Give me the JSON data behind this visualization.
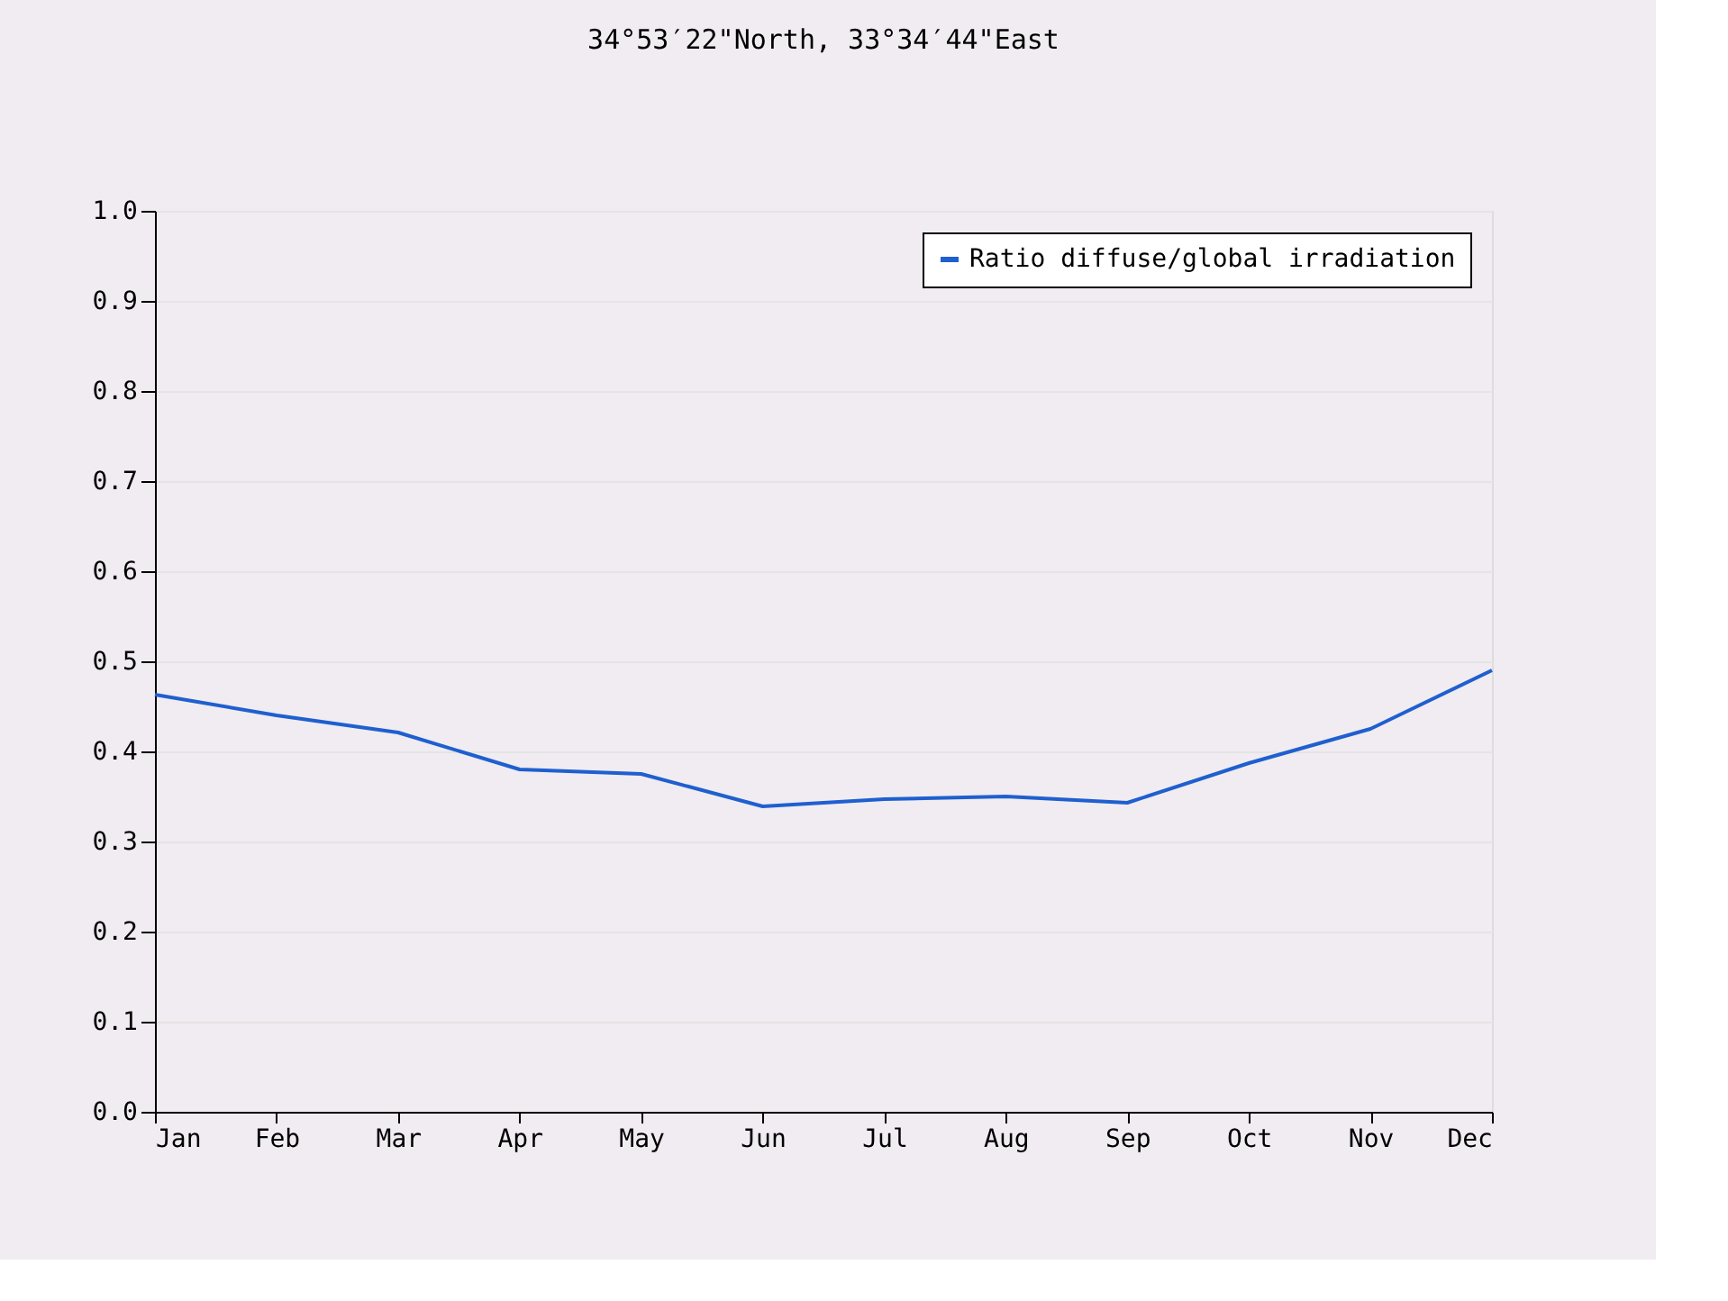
{
  "chart_data": {
    "type": "line",
    "title": "34°53′22\"North, 33°34′44\"East",
    "categories": [
      "Jan",
      "Feb",
      "Mar",
      "Apr",
      "May",
      "Jun",
      "Jul",
      "Aug",
      "Sep",
      "Oct",
      "Nov",
      "Dec"
    ],
    "series": [
      {
        "name": "Ratio diffuse/global irradiation",
        "color": "#1f5fcf",
        "values": [
          0.463,
          0.44,
          0.421,
          0.38,
          0.375,
          0.339,
          0.347,
          0.35,
          0.343,
          0.387,
          0.425,
          0.49
        ]
      }
    ],
    "ylim": [
      0.0,
      1.0
    ],
    "yticks": [
      {
        "value": 0,
        "label": "0.0"
      },
      {
        "value": 0.1,
        "label": "0.1"
      },
      {
        "value": 0.2,
        "label": "0.2"
      },
      {
        "value": 0.3,
        "label": "0.3"
      },
      {
        "value": 0.4,
        "label": "0.4"
      },
      {
        "value": 0.5,
        "label": "0.5"
      },
      {
        "value": 0.6,
        "label": "0.6"
      },
      {
        "value": 0.7,
        "label": "0.7"
      },
      {
        "value": 0.8,
        "label": "0.8"
      },
      {
        "value": 0.9,
        "label": "0.9"
      },
      {
        "value": 1,
        "label": "1.0"
      }
    ],
    "grid": "y",
    "legend": "top right",
    "marker": "none",
    "line_style": "solid"
  }
}
